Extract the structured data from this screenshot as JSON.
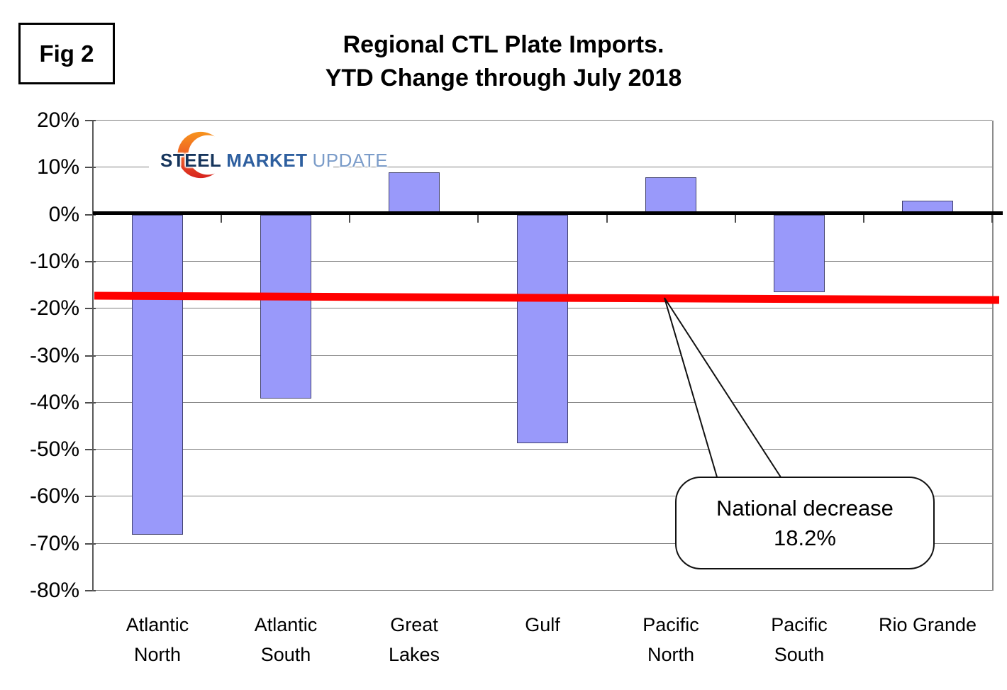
{
  "fig_label": "Fig 2",
  "title": {
    "line1": "Regional CTL Plate Imports.",
    "line2": "YTD Change through July 2018"
  },
  "logo": {
    "word1": "STEEL",
    "word2": "MARKET",
    "word3": "UPDATE"
  },
  "callout": {
    "line1": "National decrease",
    "line2": "18.2%"
  },
  "chart_data": {
    "type": "bar",
    "title": "Regional CTL Plate Imports. YTD Change through July 2018",
    "categories": [
      "Atlantic North",
      "Atlantic South",
      "Great Lakes",
      "Gulf",
      "Pacific North",
      "Pacific South",
      "Rio Grande"
    ],
    "category_label_lines": [
      [
        "Atlantic",
        "North"
      ],
      [
        "Atlantic",
        "South"
      ],
      [
        "Great",
        "Lakes"
      ],
      [
        "Gulf"
      ],
      [
        "Pacific",
        "North"
      ],
      [
        "Pacific",
        "South"
      ],
      [
        "Rio Grande"
      ]
    ],
    "values": [
      -68,
      -39,
      9,
      -48.5,
      8,
      -16.5,
      3
    ],
    "unit": "%",
    "ylim": [
      -80,
      20
    ],
    "ytick_step": 10,
    "ytick_labels": [
      "20%",
      "10%",
      "0%",
      "-10%",
      "-20%",
      "-30%",
      "-40%",
      "-50%",
      "-60%",
      "-70%",
      "-80%"
    ],
    "grid": true,
    "legend": false,
    "bar_fill": "#9999fa",
    "bar_border": "#42426e",
    "national_line": {
      "label": "National decrease 18.2%",
      "value": -18.2,
      "draw_start_pct": -17.2,
      "draw_end_pct": -18.1,
      "color": "#ff0000"
    }
  }
}
